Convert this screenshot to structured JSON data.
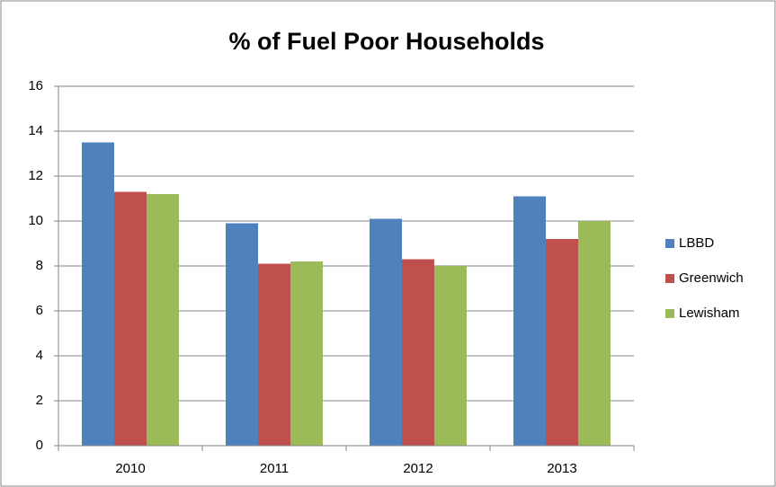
{
  "chart_data": {
    "type": "bar",
    "title": "% of Fuel Poor Households",
    "categories": [
      "2010",
      "2011",
      "2012",
      "2013"
    ],
    "series": [
      {
        "name": "LBBD",
        "color": "#4f81bd",
        "values": [
          13.5,
          9.9,
          10.1,
          11.1
        ]
      },
      {
        "name": "Greenwich",
        "color": "#c0504d",
        "values": [
          11.3,
          8.1,
          8.3,
          9.2
        ]
      },
      {
        "name": "Lewisham",
        "color": "#9bbb59",
        "values": [
          11.2,
          8.2,
          8.0,
          10.0
        ]
      }
    ],
    "ylim": [
      0,
      16
    ],
    "yticks": [
      0,
      2,
      4,
      6,
      8,
      10,
      12,
      14,
      16
    ],
    "grid": true,
    "legend": "right"
  }
}
